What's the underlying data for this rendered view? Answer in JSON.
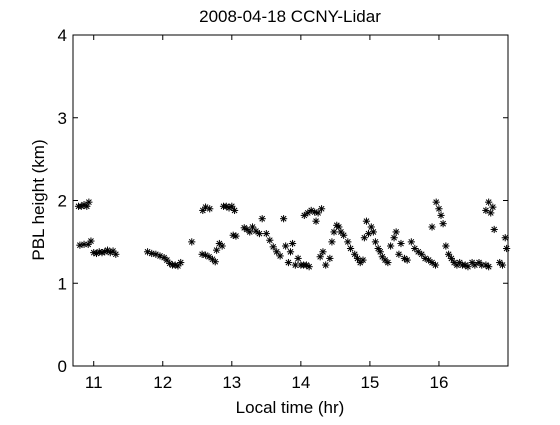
{
  "chart_data": {
    "type": "scatter",
    "title": "2008-04-18 CCNY-Lidar",
    "xlabel": "Local time (hr)",
    "ylabel": "PBL height (km)",
    "xlim": [
      10.7,
      17.0
    ],
    "ylim": [
      0,
      4
    ],
    "xticks": [
      11,
      12,
      13,
      14,
      15,
      16
    ],
    "yticks": [
      0,
      1,
      2,
      3,
      4
    ],
    "marker": "*",
    "marker_color": "#000000",
    "grid": false,
    "legend": "none",
    "series": [
      {
        "points": [
          [
            10.78,
            1.93
          ],
          [
            10.82,
            1.93
          ],
          [
            10.86,
            1.95
          ],
          [
            10.9,
            1.93
          ],
          [
            10.93,
            1.98
          ],
          [
            10.8,
            1.46
          ],
          [
            10.86,
            1.47
          ],
          [
            10.92,
            1.47
          ],
          [
            10.96,
            1.51
          ],
          [
            11.0,
            1.37
          ],
          [
            11.04,
            1.36
          ],
          [
            11.08,
            1.38
          ],
          [
            11.12,
            1.37
          ],
          [
            11.16,
            1.38
          ],
          [
            11.2,
            1.4
          ],
          [
            11.24,
            1.37
          ],
          [
            11.28,
            1.39
          ],
          [
            11.32,
            1.35
          ],
          [
            11.78,
            1.38
          ],
          [
            11.84,
            1.36
          ],
          [
            11.9,
            1.35
          ],
          [
            11.96,
            1.33
          ],
          [
            12.02,
            1.31
          ],
          [
            12.06,
            1.28
          ],
          [
            12.1,
            1.24
          ],
          [
            12.14,
            1.22
          ],
          [
            12.18,
            1.22
          ],
          [
            12.22,
            1.21
          ],
          [
            12.26,
            1.25
          ],
          [
            12.42,
            1.5
          ],
          [
            12.57,
            1.35
          ],
          [
            12.62,
            1.34
          ],
          [
            12.67,
            1.32
          ],
          [
            12.72,
            1.29
          ],
          [
            12.76,
            1.26
          ],
          [
            12.58,
            1.88
          ],
          [
            12.62,
            1.92
          ],
          [
            12.68,
            1.9
          ],
          [
            12.78,
            1.4
          ],
          [
            12.82,
            1.48
          ],
          [
            12.86,
            1.45
          ],
          [
            12.88,
            1.93
          ],
          [
            12.92,
            1.93
          ],
          [
            12.96,
            1.91
          ],
          [
            13.0,
            1.93
          ],
          [
            13.04,
            1.88
          ],
          [
            13.02,
            1.58
          ],
          [
            13.06,
            1.57
          ],
          [
            13.18,
            1.67
          ],
          [
            13.22,
            1.65
          ],
          [
            13.26,
            1.62
          ],
          [
            13.3,
            1.68
          ],
          [
            13.35,
            1.63
          ],
          [
            13.4,
            1.6
          ],
          [
            13.44,
            1.78
          ],
          [
            13.5,
            1.6
          ],
          [
            13.55,
            1.52
          ],
          [
            13.6,
            1.44
          ],
          [
            13.65,
            1.38
          ],
          [
            13.7,
            1.33
          ],
          [
            13.75,
            1.78
          ],
          [
            13.78,
            1.45
          ],
          [
            13.82,
            1.25
          ],
          [
            13.85,
            1.38
          ],
          [
            13.88,
            1.48
          ],
          [
            13.92,
            1.22
          ],
          [
            13.96,
            1.3
          ],
          [
            14.0,
            1.22
          ],
          [
            14.04,
            1.22
          ],
          [
            14.08,
            1.22
          ],
          [
            14.12,
            1.2
          ],
          [
            14.05,
            1.82
          ],
          [
            14.1,
            1.85
          ],
          [
            14.15,
            1.88
          ],
          [
            14.2,
            1.86
          ],
          [
            14.25,
            1.85
          ],
          [
            14.3,
            1.9
          ],
          [
            14.22,
            1.75
          ],
          [
            14.28,
            1.32
          ],
          [
            14.32,
            1.38
          ],
          [
            14.36,
            1.22
          ],
          [
            14.42,
            1.3
          ],
          [
            14.45,
            1.5
          ],
          [
            14.48,
            1.62
          ],
          [
            14.52,
            1.7
          ],
          [
            14.55,
            1.68
          ],
          [
            14.58,
            1.62
          ],
          [
            14.62,
            1.58
          ],
          [
            14.68,
            1.5
          ],
          [
            14.72,
            1.42
          ],
          [
            14.78,
            1.35
          ],
          [
            14.82,
            1.3
          ],
          [
            14.86,
            1.25
          ],
          [
            14.9,
            1.28
          ],
          [
            14.92,
            1.55
          ],
          [
            14.95,
            1.75
          ],
          [
            14.98,
            1.6
          ],
          [
            15.02,
            1.68
          ],
          [
            15.05,
            1.62
          ],
          [
            15.08,
            1.5
          ],
          [
            15.12,
            1.42
          ],
          [
            15.15,
            1.38
          ],
          [
            15.18,
            1.32
          ],
          [
            15.22,
            1.28
          ],
          [
            15.26,
            1.25
          ],
          [
            15.3,
            1.45
          ],
          [
            15.35,
            1.55
          ],
          [
            15.38,
            1.62
          ],
          [
            15.42,
            1.35
          ],
          [
            15.45,
            1.48
          ],
          [
            15.5,
            1.3
          ],
          [
            15.54,
            1.28
          ],
          [
            15.6,
            1.5
          ],
          [
            15.65,
            1.42
          ],
          [
            15.7,
            1.38
          ],
          [
            15.75,
            1.35
          ],
          [
            15.8,
            1.3
          ],
          [
            15.85,
            1.28
          ],
          [
            15.9,
            1.25
          ],
          [
            15.95,
            1.22
          ],
          [
            15.9,
            1.68
          ],
          [
            15.96,
            1.98
          ],
          [
            16.0,
            1.9
          ],
          [
            16.03,
            1.82
          ],
          [
            16.06,
            1.72
          ],
          [
            16.1,
            1.45
          ],
          [
            16.14,
            1.35
          ],
          [
            16.18,
            1.3
          ],
          [
            16.22,
            1.25
          ],
          [
            16.26,
            1.22
          ],
          [
            16.3,
            1.25
          ],
          [
            16.34,
            1.22
          ],
          [
            16.38,
            1.22
          ],
          [
            16.42,
            1.2
          ],
          [
            16.48,
            1.25
          ],
          [
            16.52,
            1.22
          ],
          [
            16.58,
            1.25
          ],
          [
            16.62,
            1.22
          ],
          [
            16.68,
            1.22
          ],
          [
            16.72,
            1.2
          ],
          [
            16.68,
            1.88
          ],
          [
            16.72,
            1.98
          ],
          [
            16.75,
            1.85
          ],
          [
            16.78,
            1.92
          ],
          [
            16.8,
            1.65
          ],
          [
            16.88,
            1.25
          ],
          [
            16.92,
            1.22
          ],
          [
            16.96,
            1.55
          ],
          [
            16.98,
            1.42
          ]
        ]
      }
    ]
  }
}
